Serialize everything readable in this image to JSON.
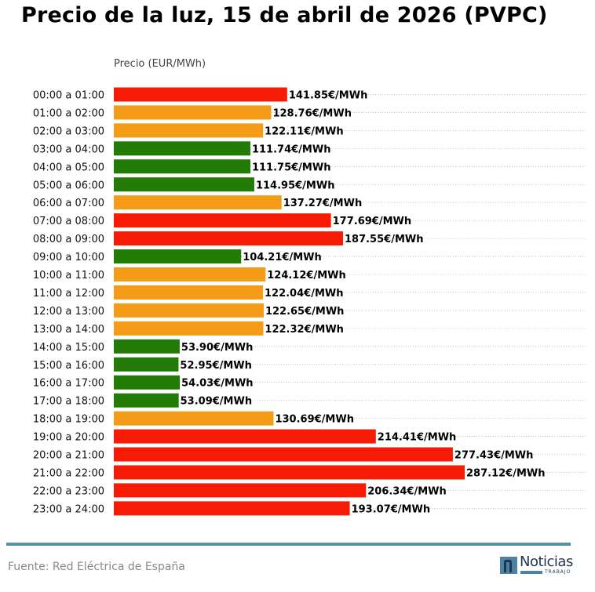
{
  "chart_data": {
    "type": "bar",
    "orientation": "horizontal",
    "title": "Precio de la luz, 15 de abril de 2026 (PVPC)",
    "xlabel": "Precio (EUR/MWh)",
    "ylabel": "",
    "value_suffix": "€/MWh",
    "xlim": [
      0,
      385
    ],
    "grid": "dotted horizontal",
    "categories": [
      "00:00 a 01:00",
      "01:00 a 02:00",
      "02:00 a 03:00",
      "03:00 a 04:00",
      "04:00 a 05:00",
      "05:00 a 06:00",
      "06:00 a 07:00",
      "07:00 a 08:00",
      "08:00 a 09:00",
      "09:00 a 10:00",
      "10:00 a 11:00",
      "11:00 a 12:00",
      "12:00 a 13:00",
      "13:00 a 14:00",
      "14:00 a 15:00",
      "15:00 a 16:00",
      "16:00 a 17:00",
      "17:00 a 18:00",
      "18:00 a 19:00",
      "19:00 a 20:00",
      "20:00 a 21:00",
      "21:00 a 22:00",
      "22:00 a 23:00",
      "23:00 a 24:00"
    ],
    "values": [
      141.85,
      128.76,
      122.11,
      111.74,
      111.75,
      114.95,
      137.27,
      177.69,
      187.55,
      104.21,
      124.12,
      122.04,
      122.65,
      122.32,
      53.9,
      52.95,
      54.03,
      53.09,
      130.69,
      214.41,
      277.43,
      287.12,
      206.34,
      193.07
    ],
    "levels": [
      "high",
      "mid",
      "mid",
      "low",
      "low",
      "low",
      "mid",
      "high",
      "high",
      "low",
      "mid",
      "mid",
      "mid",
      "mid",
      "low",
      "low",
      "low",
      "low",
      "mid",
      "high",
      "high",
      "high",
      "high",
      "high"
    ],
    "colors": {
      "high": "#f71a05",
      "mid": "#f49b18",
      "low": "#217b04"
    }
  },
  "footer": {
    "source": "Fuente: Red Eléctrica de España",
    "logo_name": "Noticias",
    "logo_sub": "TRABAJO"
  },
  "colors": {
    "footer_line": "#5b8fa8",
    "grid": "#bbbbbb"
  }
}
